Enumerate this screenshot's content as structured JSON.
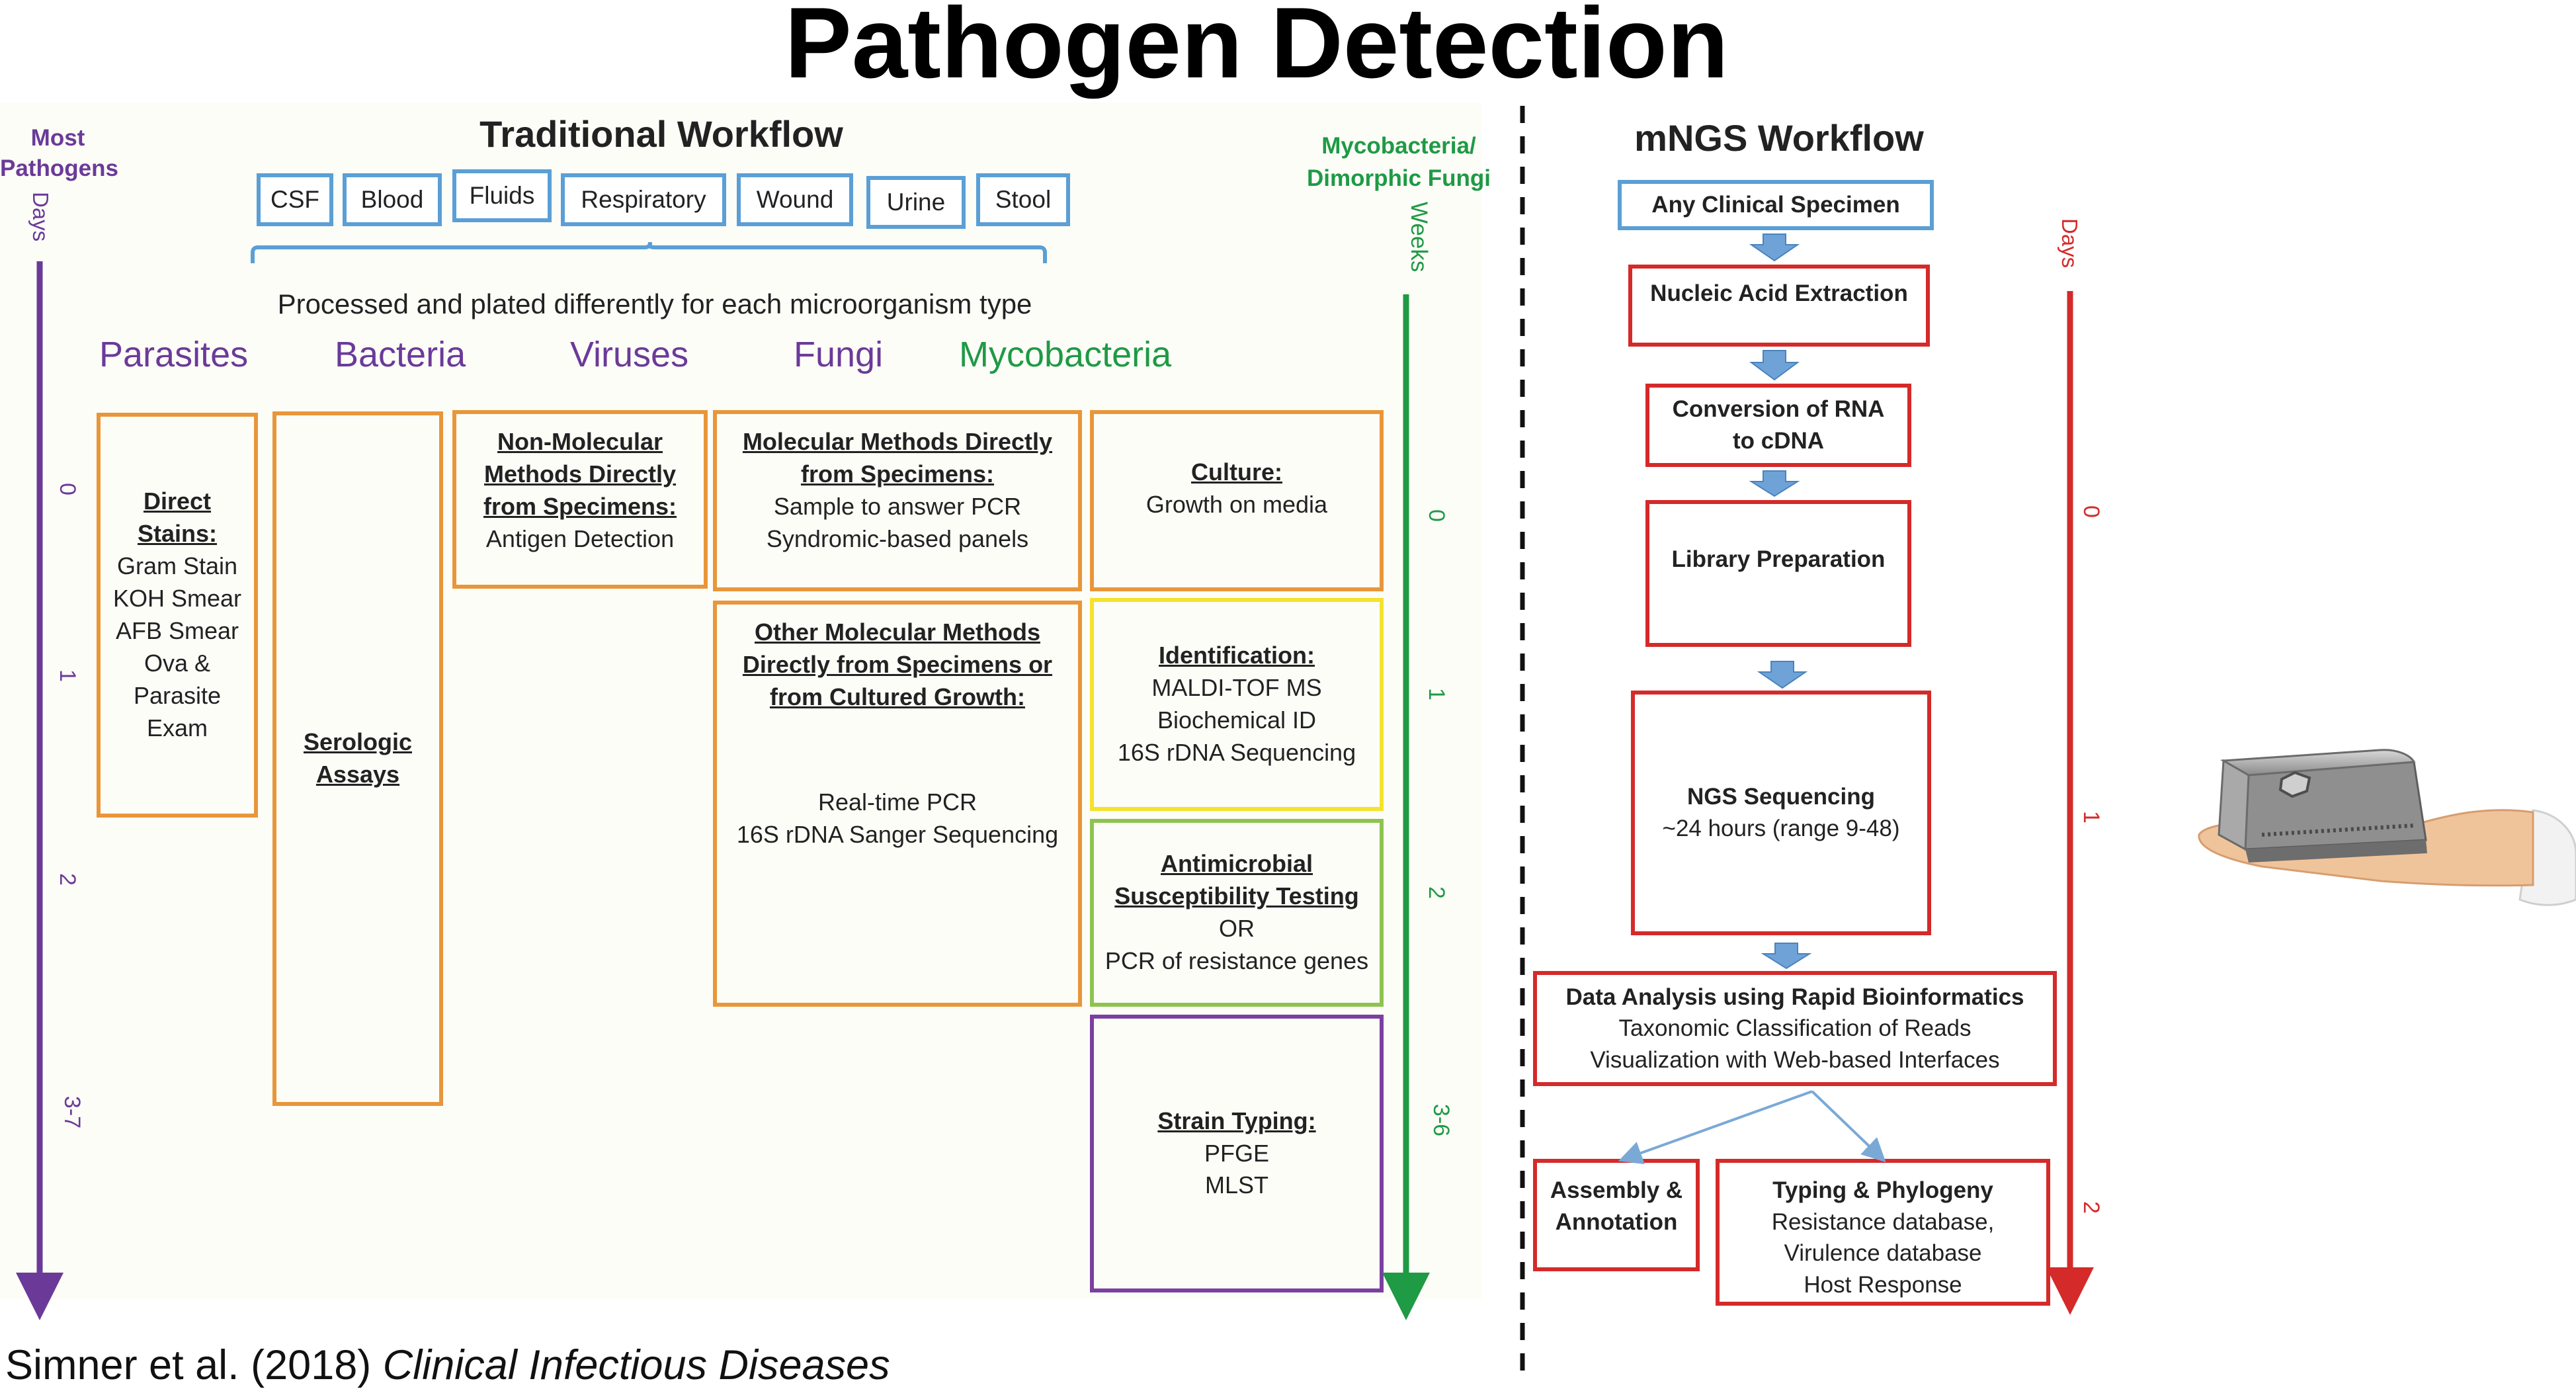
{
  "title": "Pathogen Detection",
  "citation": {
    "authors": "Simner et al. (2018) ",
    "journal": "Clinical Infectious Diseases"
  },
  "traditional": {
    "heading": "Traditional Workflow",
    "left_axis": {
      "label_line1": "Most",
      "label_line2": "Pathogens",
      "unit": "Days",
      "ticks": [
        "0",
        "1",
        "2",
        "3-7"
      ]
    },
    "right_axis": {
      "label_line1": "Mycobacteria/",
      "label_line2": "Dimorphic Fungi",
      "unit": "Weeks",
      "ticks": [
        "0",
        "1",
        "2",
        "3-6"
      ]
    },
    "specimens": [
      "CSF",
      "Blood",
      "Fluids",
      "Respiratory",
      "Wound",
      "Urine",
      "Stool"
    ],
    "processed_note": "Processed and plated differently for each microorganism type",
    "categories": [
      "Parasites",
      "Bacteria",
      "Viruses",
      "Fungi",
      "Mycobacteria"
    ],
    "boxes": {
      "direct_stains": {
        "title_line1": "Direct",
        "title_line2": "Stains:",
        "lines": [
          "Gram Stain",
          "KOH Smear",
          "AFB Smear",
          "Ova &",
          "Parasite",
          "Exam"
        ]
      },
      "serologic": {
        "line1": "Serologic",
        "line2": "Assays"
      },
      "non_molecular": {
        "title_line1": "Non-Molecular",
        "title_line2": "Methods Directly",
        "title_line3": "from Specimens:",
        "body": "Antigen Detection"
      },
      "molecular_direct": {
        "title_line1": "Molecular Methods Directly",
        "title_line2": "from Specimens:",
        "body1": "Sample to answer PCR",
        "body2": "Syndromic-based panels"
      },
      "other_molecular": {
        "title_line1": "Other Molecular Methods",
        "title_line2": "Directly from Specimens or",
        "title_line3": "from Cultured Growth:",
        "body1": "Real-time PCR",
        "body2": "16S rDNA Sanger Sequencing"
      },
      "culture": {
        "title": "Culture:",
        "body": "Growth on media"
      },
      "identification": {
        "title": "Identification:",
        "body1": "MALDI-TOF MS",
        "body2": "Biochemical ID",
        "body3": "16S rDNA Sequencing"
      },
      "ast": {
        "title_line1": "Antimicrobial",
        "title_line2": "Susceptibility Testing",
        "body1": "OR",
        "body2": "PCR of resistance genes"
      },
      "strain_typing": {
        "title": "Strain Typing:",
        "body1": "PFGE",
        "body2": "MLST"
      }
    }
  },
  "mngs": {
    "heading": "mNGS Workflow",
    "axis": {
      "unit": "Days",
      "ticks": [
        "0",
        "1",
        "2"
      ]
    },
    "steps": {
      "specimen": "Any Clinical Specimen",
      "extraction": "Nucleic Acid Extraction",
      "conversion_line1": "Conversion of RNA",
      "conversion_line2": "to cDNA",
      "library": "Library Preparation",
      "ngs_title": "NGS Sequencing",
      "ngs_body": "~24 hours (range 9-48)",
      "analysis_title": "Data Analysis using Rapid Bioinformatics",
      "analysis_body1": "Taxonomic Classification of Reads",
      "analysis_body2": "Visualization with Web-based Interfaces",
      "assembly_line1": "Assembly &",
      "assembly_line2": "Annotation",
      "typing_title": "Typing & Phylogeny",
      "typing_body1": "Resistance database,",
      "typing_body2": "Virulence database",
      "typing_body3": "Host Response"
    }
  },
  "colors": {
    "purple": "#6b3a99",
    "green": "#1f9a45",
    "red": "#d42a2a",
    "orange": "#e8963a",
    "yellow": "#f4e22c",
    "light_green": "#8dc450",
    "blue": "#5a9fd6"
  }
}
